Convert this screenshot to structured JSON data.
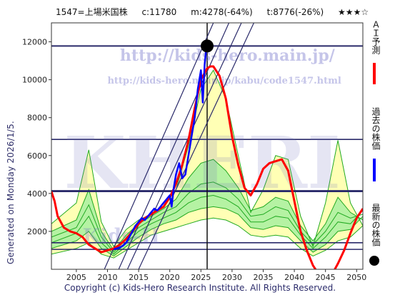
{
  "header": {
    "code_name": "1547=上場米国株",
    "current": "c:11780",
    "min_info": "m:4278(-64%)",
    "target_info": "t:8776(-26%)",
    "stars": "★★★☆"
  },
  "generated_text": "Generated on Monday 2026/1/5.",
  "copyright": "Copyright (c) Kids-Hero Research Institute. All Rights Reserved.",
  "watermarks": {
    "url_main": "http://kids-hero.main.jp/",
    "url_code": "http://kids-hero.main.jp/kabu/code1547.html",
    "kids_hero": "Kids-H",
    "big": "KHERI"
  },
  "legend": {
    "ai_forecast": "ＡＩ予測",
    "past_price": "過去の株価",
    "latest_price": "最新の株価"
  },
  "colors": {
    "ai_forecast": "#ff0000",
    "past_price": "#0000ff",
    "latest_marker": "#000000",
    "hlines": "#2a2a6a",
    "band_yellow": "#ffffa8",
    "band_green": "#a8f0a0",
    "band_line": "#22aa22"
  },
  "chart_data": {
    "type": "line",
    "xlim": [
      2001,
      2051
    ],
    "ylim": [
      0,
      13000
    ],
    "x_ticks": [
      2005,
      2010,
      2015,
      2020,
      2025,
      2030,
      2035,
      2040,
      2045,
      2050
    ],
    "y_ticks": [
      2000,
      4000,
      6000,
      8000,
      10000,
      12000
    ],
    "horizontal_lines": [
      11780,
      6850,
      4150,
      4100,
      1400,
      1050
    ],
    "vertical_line_x": 2026.0,
    "latest_point": {
      "x": 2026.0,
      "y": 11780
    },
    "past_price": {
      "name": "過去の株価",
      "x": [
        2011.0,
        2011.5,
        2012.0,
        2012.5,
        2013.0,
        2013.5,
        2014.0,
        2014.5,
        2015.0,
        2015.5,
        2016.0,
        2016.5,
        2017.0,
        2017.5,
        2018.0,
        2018.5,
        2019.0,
        2019.5,
        2020.0,
        2020.3,
        2020.6,
        2021.0,
        2021.5,
        2022.0,
        2022.5,
        2023.0,
        2023.5,
        2024.0,
        2024.5,
        2025.0,
        2025.3,
        2025.6,
        2025.9
      ],
      "y": [
        1050,
        1100,
        1150,
        1250,
        1400,
        1700,
        2000,
        2300,
        2500,
        2700,
        2600,
        2800,
        3000,
        3200,
        3100,
        3300,
        3500,
        3700,
        3900,
        3300,
        4200,
        5000,
        5600,
        4800,
        5000,
        6000,
        7000,
        8000,
        9500,
        10500,
        8800,
        10800,
        11780
      ]
    },
    "ai_forecast": {
      "name": "ＡＩ予測",
      "x": [
        2001,
        2001.5,
        2002,
        2003,
        2004,
        2005,
        2006,
        2007,
        2008,
        2009,
        2010,
        2011,
        2012,
        2013,
        2014,
        2015,
        2016,
        2017,
        2018,
        2019,
        2020,
        2021,
        2022,
        2023,
        2024,
        2025,
        2026,
        2026.5,
        2027,
        2028,
        2029,
        2030,
        2031,
        2032,
        2033,
        2034,
        2035,
        2036,
        2037,
        2038,
        2039,
        2040,
        2041,
        2042,
        2043,
        2044,
        2045,
        2046,
        2047,
        2048,
        2049,
        2050,
        2051
      ],
      "y": [
        4100,
        3600,
        2800,
        2200,
        2000,
        1900,
        1700,
        1300,
        1100,
        900,
        1000,
        1100,
        1300,
        1600,
        2000,
        2400,
        2700,
        2900,
        3100,
        3300,
        3800,
        4500,
        5500,
        6800,
        8500,
        10000,
        10600,
        10700,
        10700,
        10200,
        9000,
        7000,
        5500,
        4300,
        3900,
        4500,
        5300,
        5600,
        5700,
        5800,
        5200,
        3600,
        2000,
        1000,
        200,
        -300,
        -500,
        -300,
        300,
        1000,
        1900,
        2700,
        3200
      ]
    },
    "band_lines": [
      {
        "x": [
          2001,
          2005,
          2007,
          2009,
          2011,
          2013,
          2015,
          2017,
          2019,
          2021,
          2023,
          2025,
          2027,
          2029,
          2031,
          2033,
          2035,
          2037,
          2039,
          2041,
          2043,
          2045,
          2047,
          2049,
          2051
        ],
        "y": [
          2400,
          3500,
          6300,
          2500,
          1200,
          2100,
          2600,
          2900,
          3300,
          4200,
          6500,
          9500,
          10500,
          9000,
          6000,
          3000,
          4200,
          6000,
          5800,
          2800,
          1200,
          3500,
          6800,
          3500,
          2300
        ]
      },
      {
        "x": [
          2001,
          2005,
          2007,
          2009,
          2011,
          2013,
          2015,
          2017,
          2019,
          2021,
          2023,
          2025,
          2027,
          2029,
          2031,
          2033,
          2035,
          2037,
          2039,
          2041,
          2043,
          2045,
          2047,
          2049,
          2051
        ],
        "y": [
          2000,
          2600,
          4200,
          2000,
          1000,
          1800,
          2400,
          2800,
          3200,
          3700,
          4800,
          5600,
          5800,
          5200,
          4300,
          3100,
          3300,
          3800,
          3600,
          2300,
          1500,
          2400,
          3800,
          3000,
          2600
        ]
      },
      {
        "x": [
          2001,
          2005,
          2007,
          2009,
          2011,
          2013,
          2015,
          2017,
          2019,
          2021,
          2023,
          2025,
          2027,
          2029,
          2031,
          2033,
          2035,
          2037,
          2039,
          2041,
          2043,
          2045,
          2047,
          2049,
          2051
        ],
        "y": [
          1700,
          2200,
          3400,
          1700,
          900,
          1600,
          2200,
          2600,
          3000,
          3300,
          4000,
          4500,
          4600,
          4300,
          3700,
          2800,
          2900,
          3300,
          3100,
          2000,
          1300,
          2000,
          3000,
          2700,
          2900
        ]
      },
      {
        "x": [
          2001,
          2005,
          2007,
          2009,
          2011,
          2013,
          2015,
          2017,
          2019,
          2021,
          2023,
          2025,
          2027,
          2029,
          2031,
          2033,
          2035,
          2037,
          2039,
          2041,
          2043,
          2045,
          2047,
          2049,
          2051
        ],
        "y": [
          1400,
          1900,
          2800,
          1400,
          800,
          1400,
          2000,
          2400,
          2700,
          3000,
          3500,
          3800,
          3900,
          3700,
          3300,
          2500,
          2500,
          2800,
          2700,
          1800,
          1100,
          1700,
          2500,
          2400,
          3100
        ]
      },
      {
        "x": [
          2001,
          2005,
          2007,
          2009,
          2011,
          2013,
          2015,
          2017,
          2019,
          2021,
          2023,
          2025,
          2027,
          2029,
          2031,
          2033,
          2035,
          2037,
          2039,
          2041,
          2043,
          2045,
          2047,
          2049,
          2051
        ],
        "y": [
          1100,
          1500,
          2000,
          1100,
          700,
          1200,
          1700,
          2100,
          2400,
          2600,
          3000,
          3200,
          3300,
          3200,
          2900,
          2200,
          2100,
          2300,
          2200,
          1500,
          900,
          1300,
          2000,
          2100,
          2800
        ]
      },
      {
        "x": [
          2001,
          2005,
          2007,
          2009,
          2011,
          2013,
          2015,
          2017,
          2019,
          2021,
          2023,
          2025,
          2027,
          2029,
          2031,
          2033,
          2035,
          2037,
          2039,
          2041,
          2043,
          2045,
          2047,
          2049,
          2051
        ],
        "y": [
          800,
          1100,
          1400,
          800,
          600,
          1000,
          1400,
          1800,
          2000,
          2200,
          2400,
          2600,
          2700,
          2600,
          2300,
          1800,
          1700,
          1800,
          1700,
          1100,
          700,
          1000,
          1500,
          1700,
          2300
        ]
      }
    ],
    "trend_lines": [
      {
        "x": [
          2011.8,
          2029.5
        ],
        "y": [
          0,
          13000
        ]
      },
      {
        "x": [
          2013.2,
          2031.5
        ],
        "y": [
          0,
          13000
        ]
      },
      {
        "x": [
          2015.0,
          2033.5
        ],
        "y": [
          0,
          13000
        ]
      },
      {
        "x": [
          2009.5,
          2027.0
        ],
        "y": [
          0,
          13000
        ]
      }
    ]
  }
}
